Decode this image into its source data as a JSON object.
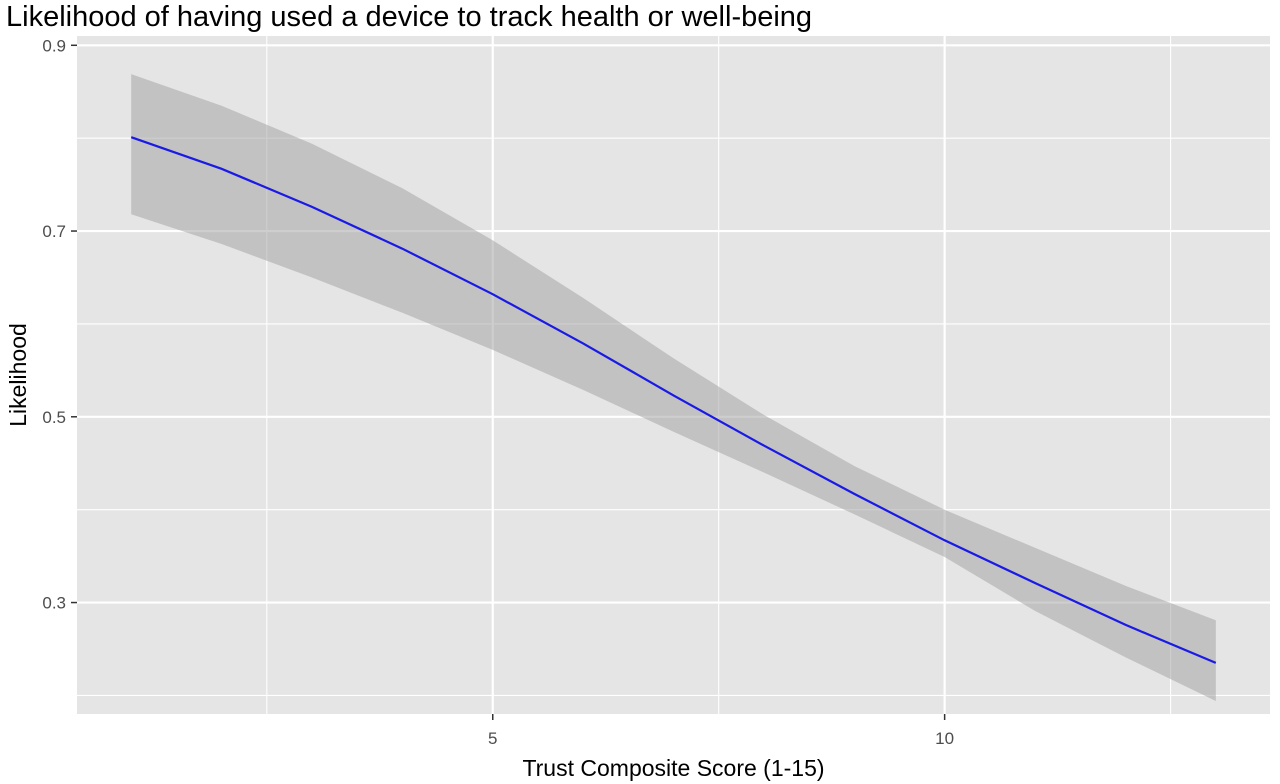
{
  "chart_data": {
    "type": "line",
    "title": "Likelihood of having used a device to track health or well-being",
    "xlabel": "Trust Composite Score (1-15)",
    "ylabel": "Likelihood",
    "xlim": [
      0.4,
      13.6
    ],
    "ylim": [
      0.18,
      0.91
    ],
    "x_ticks": [
      5,
      10
    ],
    "x_tick_labels": [
      "5",
      "10"
    ],
    "x_minor_ticks": [
      2.5,
      7.5,
      12.5
    ],
    "y_ticks": [
      0.3,
      0.5,
      0.7,
      0.9
    ],
    "y_tick_labels": [
      "0.3",
      "0.5",
      "0.7",
      "0.9"
    ],
    "y_minor_ticks": [
      0.2,
      0.4,
      0.6,
      0.8
    ],
    "grid": true,
    "legend": "none",
    "series": [
      {
        "x": [
          1,
          2,
          3,
          4,
          5,
          6,
          7,
          8,
          9,
          10,
          11,
          12,
          13
        ],
        "y": [
          0.801,
          0.767,
          0.726,
          0.681,
          0.632,
          0.579,
          0.523,
          0.469,
          0.417,
          0.367,
          0.321,
          0.276,
          0.235
        ],
        "ci_lower": [
          0.718,
          0.686,
          0.65,
          0.612,
          0.572,
          0.529,
          0.484,
          0.44,
          0.395,
          0.349,
          0.291,
          0.241,
          0.194
        ],
        "ci_upper": [
          0.869,
          0.835,
          0.794,
          0.746,
          0.69,
          0.628,
          0.563,
          0.502,
          0.447,
          0.4,
          0.359,
          0.318,
          0.281
        ]
      }
    ],
    "colors": {
      "line": "#1a1ae6",
      "ribbon": "#a6a6a6",
      "panel": "#e5e5e5",
      "grid": "#ffffff"
    }
  }
}
